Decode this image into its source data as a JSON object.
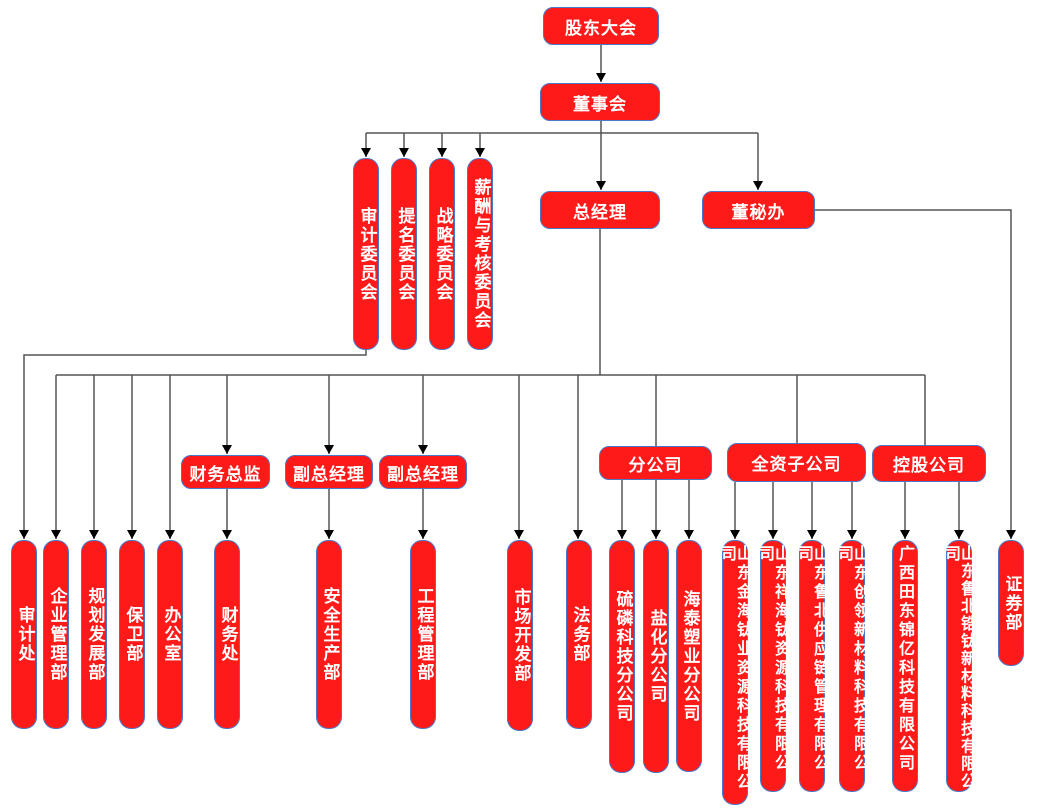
{
  "colors": {
    "box_fill": "#FF1A1A",
    "box_border": "#4A78C8",
    "text": "#FFFFFF",
    "line": "#555555"
  },
  "nodes": [
    {
      "id": "gudong",
      "label": "股东大会"
    },
    {
      "id": "dongshihui",
      "label": "董事会"
    },
    {
      "id": "shenji_wyh",
      "label": "审计委员会"
    },
    {
      "id": "timing_wyh",
      "label": "提名委员会"
    },
    {
      "id": "zhanlue_wyh",
      "label": "战略委员会"
    },
    {
      "id": "xinchou_wyh",
      "label": "薪酬与考核委员会"
    },
    {
      "id": "zongjingli",
      "label": "总经理"
    },
    {
      "id": "dongmiban",
      "label": "董秘办"
    },
    {
      "id": "caiwu_zongjian",
      "label": "财务总监"
    },
    {
      "id": "fuzong1",
      "label": "副总经理"
    },
    {
      "id": "fuzong2",
      "label": "副总经理"
    },
    {
      "id": "fengongsi",
      "label": "分公司"
    },
    {
      "id": "quanzi",
      "label": "全资子公司"
    },
    {
      "id": "konggu",
      "label": "控股公司"
    },
    {
      "id": "shenjichu",
      "label": "审计处"
    },
    {
      "id": "qiye",
      "label": "企业管理部"
    },
    {
      "id": "guihua",
      "label": "规划发展部"
    },
    {
      "id": "baowei",
      "label": "保卫部"
    },
    {
      "id": "bangongshi",
      "label": "办公室"
    },
    {
      "id": "caiwuchu",
      "label": "财务处"
    },
    {
      "id": "anquan",
      "label": "安全生产部"
    },
    {
      "id": "gongcheng",
      "label": "工程管理部"
    },
    {
      "id": "shichang",
      "label": "市场开发部"
    },
    {
      "id": "fawu",
      "label": "法务部"
    },
    {
      "id": "liulin",
      "label": "硫磷科技分公司"
    },
    {
      "id": "yanhua",
      "label": "盐化分公司"
    },
    {
      "id": "haitai",
      "label": "海泰塑业分公司"
    },
    {
      "id": "jinhai",
      "label": "山东金海钛业资源科技有限公司"
    },
    {
      "id": "xianghai",
      "label": "山东祥海钛资源科技有限公司"
    },
    {
      "id": "lubei_gyl",
      "label": "山东鲁北供应链管理有限公司"
    },
    {
      "id": "chuangling",
      "label": "山东创领新材料科技有限公司"
    },
    {
      "id": "guangxi",
      "label": "广西田东锦亿科技有限公司"
    },
    {
      "id": "lubei_gt",
      "label": "山东鲁北锆钛新材料科技有限公司"
    },
    {
      "id": "zhengquan",
      "label": "证券部"
    }
  ]
}
